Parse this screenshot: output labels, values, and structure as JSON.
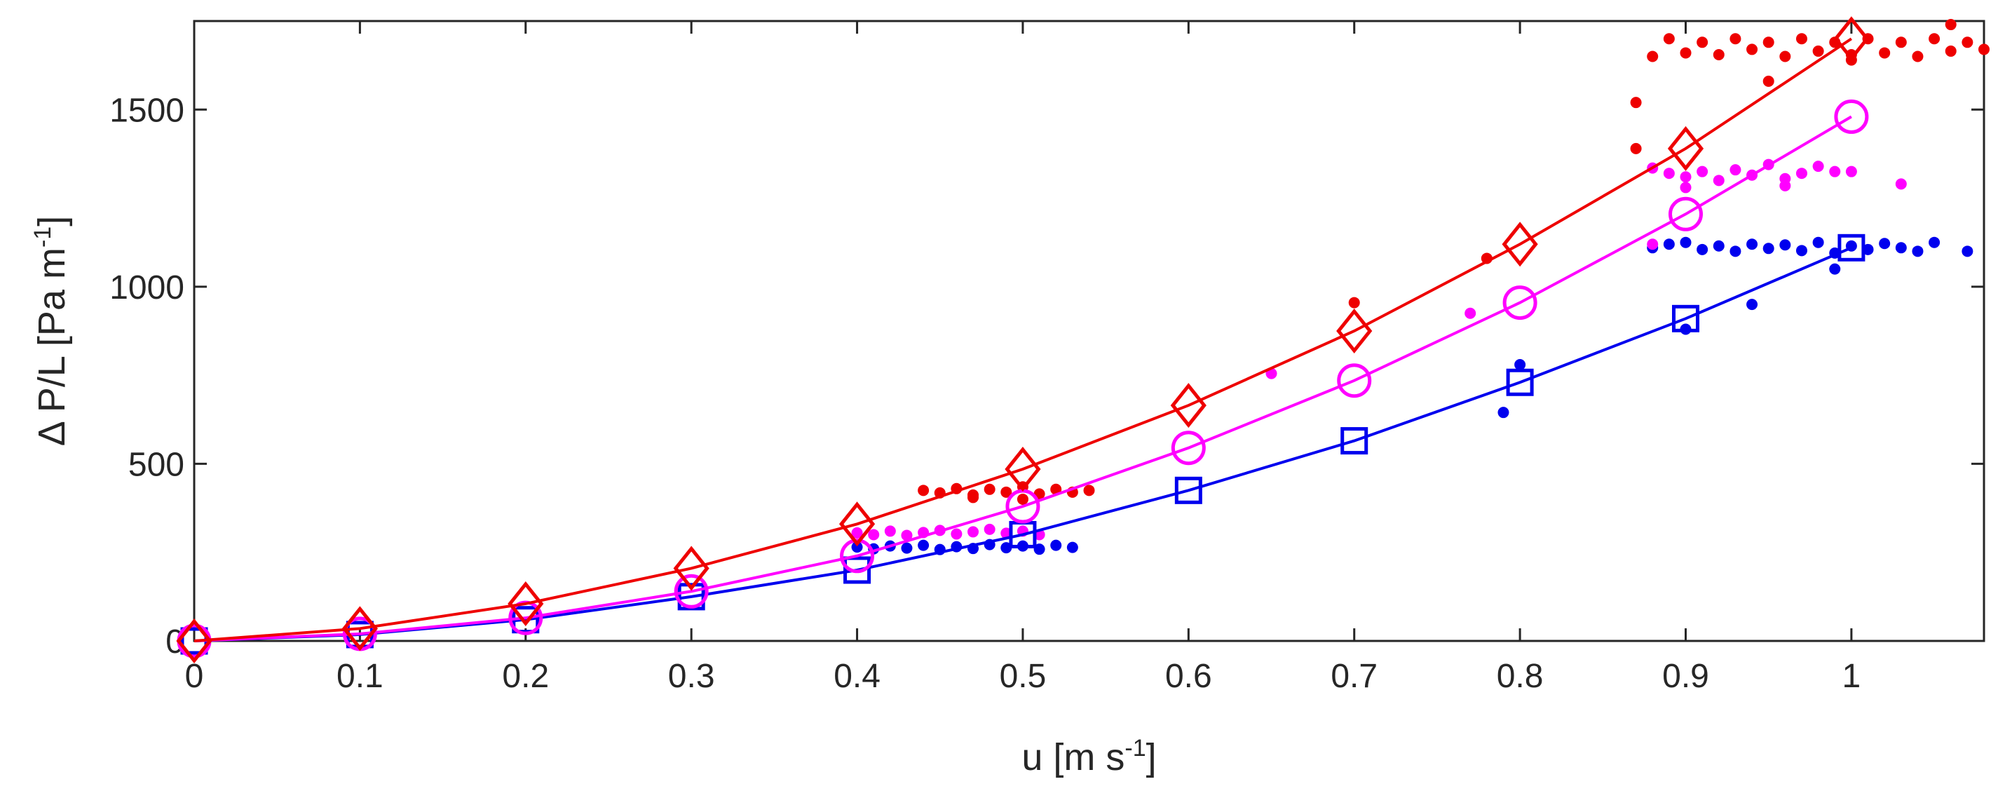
{
  "chart_data": {
    "type": "scatter",
    "title": "",
    "xlabel": {
      "main": "u [m s",
      "sup": "-1",
      "close": "]"
    },
    "ylabel": {
      "main": "Δ P/L [Pa m",
      "sup": "-1",
      "close": "]"
    },
    "xlim": [
      0,
      1.08
    ],
    "ylim": [
      0,
      1750
    ],
    "xticks": [
      0,
      0.1,
      0.2,
      0.3,
      0.4,
      0.5,
      0.6,
      0.7,
      0.8,
      0.9,
      1
    ],
    "xtick_labels": [
      "0",
      "0.1",
      "0.2",
      "0.3",
      "0.4",
      "0.5",
      "0.6",
      "0.7",
      "0.8",
      "0.9",
      "1"
    ],
    "yticks": [
      0,
      500,
      1000,
      1500
    ],
    "ytick_labels": [
      "0",
      "500",
      "1000",
      "1500"
    ],
    "grid": false,
    "series": [
      {
        "name": "blue",
        "color": "#0000ee",
        "marker": "square",
        "line_x": [
          0,
          0.1,
          0.2,
          0.3,
          0.4,
          0.5,
          0.6,
          0.7,
          0.8,
          0.9,
          1.0
        ],
        "line_y": [
          0,
          18,
          60,
          125,
          200,
          300,
          425,
          565,
          730,
          910,
          1110
        ],
        "points": [
          [
            0.4,
            265
          ],
          [
            0.41,
            260
          ],
          [
            0.42,
            268
          ],
          [
            0.43,
            262
          ],
          [
            0.44,
            270
          ],
          [
            0.45,
            258
          ],
          [
            0.46,
            266
          ],
          [
            0.47,
            261
          ],
          [
            0.48,
            272
          ],
          [
            0.49,
            263
          ],
          [
            0.5,
            268
          ],
          [
            0.51,
            259
          ],
          [
            0.52,
            270
          ],
          [
            0.53,
            264
          ],
          [
            0.79,
            645
          ],
          [
            0.8,
            780
          ],
          [
            0.9,
            880
          ],
          [
            0.94,
            950
          ],
          [
            0.88,
            1110
          ],
          [
            0.89,
            1120
          ],
          [
            0.9,
            1125
          ],
          [
            0.91,
            1105
          ],
          [
            0.92,
            1115
          ],
          [
            0.93,
            1100
          ],
          [
            0.94,
            1120
          ],
          [
            0.95,
            1108
          ],
          [
            0.96,
            1118
          ],
          [
            0.97,
            1102
          ],
          [
            0.98,
            1125
          ],
          [
            0.99,
            1095
          ],
          [
            1.0,
            1115
          ],
          [
            1.01,
            1105
          ],
          [
            1.02,
            1122
          ],
          [
            1.03,
            1110
          ],
          [
            1.04,
            1100
          ],
          [
            1.05,
            1125
          ],
          [
            1.07,
            1100
          ],
          [
            0.99,
            1050
          ]
        ]
      },
      {
        "name": "magenta",
        "color": "#ff00ff",
        "marker": "circle",
        "line_x": [
          0,
          0.1,
          0.2,
          0.3,
          0.4,
          0.5,
          0.6,
          0.7,
          0.8,
          0.9,
          1.0
        ],
        "line_y": [
          0,
          20,
          65,
          140,
          240,
          380,
          545,
          735,
          955,
          1205,
          1480
        ],
        "points": [
          [
            0.4,
            305
          ],
          [
            0.41,
            300
          ],
          [
            0.42,
            310
          ],
          [
            0.43,
            298
          ],
          [
            0.44,
            306
          ],
          [
            0.45,
            312
          ],
          [
            0.46,
            302
          ],
          [
            0.47,
            308
          ],
          [
            0.48,
            315
          ],
          [
            0.49,
            304
          ],
          [
            0.5,
            310
          ],
          [
            0.51,
            300
          ],
          [
            0.65,
            755
          ],
          [
            0.77,
            925
          ],
          [
            0.88,
            1120
          ],
          [
            0.88,
            1335
          ],
          [
            0.89,
            1320
          ],
          [
            0.9,
            1310
          ],
          [
            0.91,
            1325
          ],
          [
            0.92,
            1300
          ],
          [
            0.93,
            1330
          ],
          [
            0.94,
            1315
          ],
          [
            0.95,
            1345
          ],
          [
            0.96,
            1305
          ],
          [
            0.97,
            1320
          ],
          [
            0.98,
            1340
          ],
          [
            0.99,
            1325
          ],
          [
            1.0,
            1325
          ],
          [
            0.9,
            1280
          ],
          [
            0.96,
            1285
          ],
          [
            1.03,
            1290
          ]
        ]
      },
      {
        "name": "red",
        "color": "#ee0000",
        "marker": "diamond",
        "line_x": [
          0,
          0.1,
          0.2,
          0.3,
          0.4,
          0.5,
          0.6,
          0.7,
          0.8,
          0.9,
          1.0
        ],
        "line_y": [
          0,
          35,
          105,
          205,
          330,
          485,
          665,
          875,
          1120,
          1390,
          1700
        ],
        "points": [
          [
            0.44,
            425
          ],
          [
            0.45,
            418
          ],
          [
            0.46,
            430
          ],
          [
            0.47,
            412
          ],
          [
            0.48,
            428
          ],
          [
            0.49,
            420
          ],
          [
            0.5,
            435
          ],
          [
            0.51,
            415
          ],
          [
            0.52,
            428
          ],
          [
            0.53,
            420
          ],
          [
            0.54,
            425
          ],
          [
            0.47,
            405
          ],
          [
            0.5,
            400
          ],
          [
            0.7,
            955
          ],
          [
            0.78,
            1080
          ],
          [
            0.87,
            1520
          ],
          [
            0.87,
            1390
          ],
          [
            0.88,
            1650
          ],
          [
            0.89,
            1700
          ],
          [
            0.9,
            1660
          ],
          [
            0.91,
            1690
          ],
          [
            0.92,
            1655
          ],
          [
            0.93,
            1700
          ],
          [
            0.94,
            1670
          ],
          [
            0.95,
            1690
          ],
          [
            0.96,
            1650
          ],
          [
            0.97,
            1700
          ],
          [
            0.98,
            1665
          ],
          [
            0.99,
            1690
          ],
          [
            1.0,
            1655
          ],
          [
            1.01,
            1700
          ],
          [
            1.02,
            1660
          ],
          [
            1.03,
            1690
          ],
          [
            1.04,
            1650
          ],
          [
            1.05,
            1700
          ],
          [
            1.06,
            1665
          ],
          [
            1.07,
            1690
          ],
          [
            1.08,
            1670
          ],
          [
            0.95,
            1580
          ],
          [
            1.0,
            1640
          ],
          [
            1.06,
            1740
          ]
        ]
      }
    ]
  }
}
